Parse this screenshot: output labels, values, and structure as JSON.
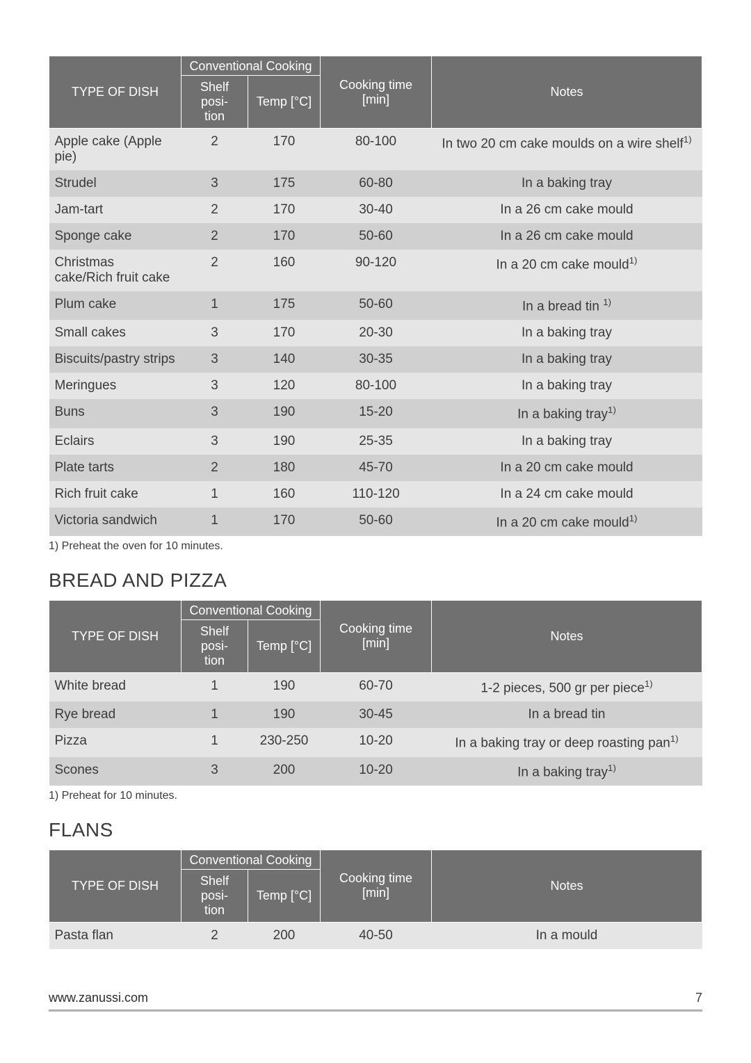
{
  "colors": {
    "header_bg": "#707070",
    "header_text": "#ffffff",
    "row_odd_bg": "#e5e5e5",
    "row_even_bg": "#d0d0d0",
    "body_text": "#3a3a3a",
    "page_bg": "#ffffff",
    "footer_rule": "#b0b0b0"
  },
  "typography": {
    "font_family": "Arial, Helvetica, sans-serif",
    "section_title_fontsize": 28,
    "header_fontsize": 18,
    "body_fontsize": 19,
    "footnote_fontsize": 16,
    "footer_fontsize": 18
  },
  "headers": {
    "type_of_dish": "TYPE OF DISH",
    "conventional_cooking": "Conventional Cooking",
    "shelf_position": "Shelf posi-\ntion",
    "temp": "Temp [°C]",
    "cooking_time": "Cooking time\n[min]",
    "notes": "Notes"
  },
  "cakes": {
    "footnote": "1) Preheat the oven for 10 minutes.",
    "rows": [
      {
        "dish": "Apple cake (Apple pie)",
        "shelf": "2",
        "temp": "170",
        "time": "80-100",
        "notes": "In two 20 cm cake moulds on a wire shelf",
        "sup": "1)"
      },
      {
        "dish": "Strudel",
        "shelf": "3",
        "temp": "175",
        "time": "60-80",
        "notes": "In a baking tray"
      },
      {
        "dish": "Jam-tart",
        "shelf": "2",
        "temp": "170",
        "time": "30-40",
        "notes": "In a 26 cm cake mould"
      },
      {
        "dish": "Sponge cake",
        "shelf": "2",
        "temp": "170",
        "time": "50-60",
        "notes": "In a 26 cm cake mould"
      },
      {
        "dish": "Christmas cake/Rich fruit cake",
        "shelf": "2",
        "temp": "160",
        "time": "90-120",
        "notes": "In a 20 cm cake mould",
        "sup": "1)"
      },
      {
        "dish": "Plum cake",
        "shelf": "1",
        "temp": "175",
        "time": "50-60",
        "notes": "In a bread tin ",
        "sup": "1)"
      },
      {
        "dish": "Small cakes",
        "shelf": "3",
        "temp": "170",
        "time": "20-30",
        "notes": "In a baking tray"
      },
      {
        "dish": "Biscuits/pastry strips",
        "shelf": "3",
        "temp": "140",
        "time": "30-35",
        "notes": "In a baking tray"
      },
      {
        "dish": "Meringues",
        "shelf": "3",
        "temp": "120",
        "time": "80-100",
        "notes": "In a baking tray"
      },
      {
        "dish": "Buns",
        "shelf": "3",
        "temp": "190",
        "time": "15-20",
        "notes": "In a baking tray",
        "sup": "1)"
      },
      {
        "dish": "Eclairs",
        "shelf": "3",
        "temp": "190",
        "time": "25-35",
        "notes": "In a baking tray"
      },
      {
        "dish": "Plate tarts",
        "shelf": "2",
        "temp": "180",
        "time": "45-70",
        "notes": "In a 20 cm cake mould"
      },
      {
        "dish": "Rich fruit cake",
        "shelf": "1",
        "temp": "160",
        "time": "110-120",
        "notes": "In a 24 cm cake mould"
      },
      {
        "dish": "Victoria sandwich",
        "shelf": "1",
        "temp": "170",
        "time": "50-60",
        "notes": "In a 20 cm cake mould",
        "sup": "1)"
      }
    ]
  },
  "bread": {
    "title": "BREAD AND PIZZA",
    "footnote": "1) Preheat for 10 minutes.",
    "rows": [
      {
        "dish": "White bread",
        "shelf": "1",
        "temp": "190",
        "time": "60-70",
        "notes": "1-2 pieces, 500 gr per piece",
        "sup": "1)"
      },
      {
        "dish": "Rye bread",
        "shelf": "1",
        "temp": "190",
        "time": "30-45",
        "notes": "In a bread tin"
      },
      {
        "dish": "Pizza",
        "shelf": "1",
        "temp": "230-250",
        "time": "10-20",
        "notes": "In a baking tray or deep roasting pan",
        "sup": "1)"
      },
      {
        "dish": "Scones",
        "shelf": "3",
        "temp": "200",
        "time": "10-20",
        "notes": "In a baking tray",
        "sup": "1)"
      }
    ]
  },
  "flans": {
    "title": "FLANS",
    "rows": [
      {
        "dish": "Pasta flan",
        "shelf": "2",
        "temp": "200",
        "time": "40-50",
        "notes": "In a mould"
      }
    ]
  },
  "footer": {
    "url": "www.zanussi.com",
    "page": "7"
  }
}
